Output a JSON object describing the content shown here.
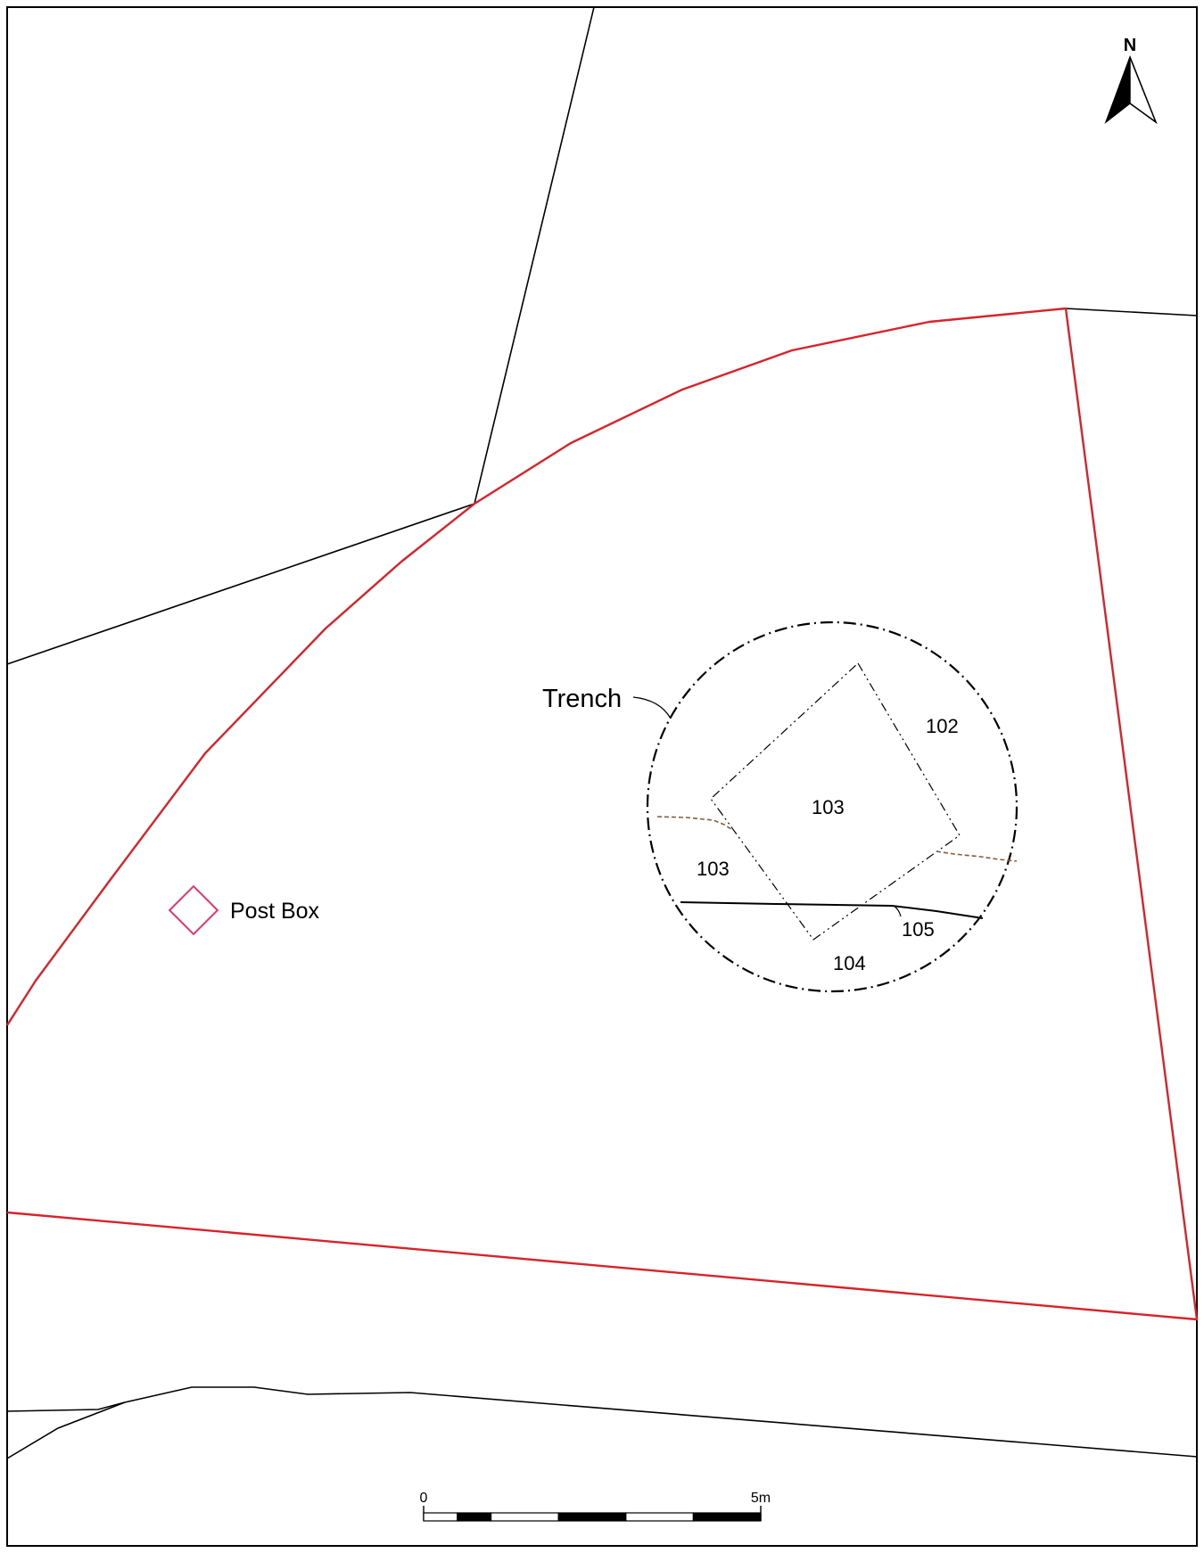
{
  "north_arrow": {
    "label": "N"
  },
  "labels": {
    "trench": "Trench",
    "post_box": "Post Box"
  },
  "contexts": {
    "c102": "102",
    "c103_upper": "103",
    "c103_lower": "103",
    "c104": "104",
    "c105": "105"
  },
  "scale_bar": {
    "start_label": "0",
    "end_label": "5m"
  },
  "colors": {
    "site_boundary": "#d8232a",
    "post_box": "#e8336a",
    "boundary_dashed": "#8a5a3a",
    "linework": "#000000"
  }
}
